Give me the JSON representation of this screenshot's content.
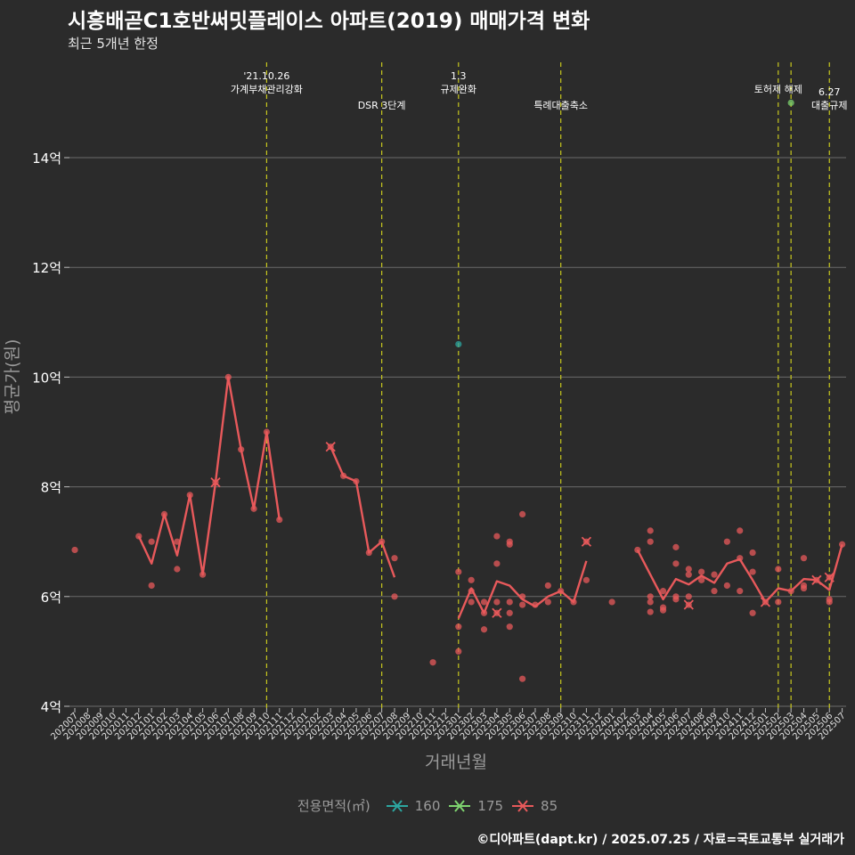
{
  "title": "시흥배곧C1호반써밋플레이스 아파트(2019) 매매가격 변화",
  "subtitle": "최근 5개년 한정",
  "caption": "©디아파트(dapt.kr) / 2025.07.25 / 자료=국토교통부 실거래가",
  "colors": {
    "background": "#2b2b2b",
    "grid": "#6b6b6b",
    "event_line": "#c8c81e",
    "series_160": "#2ca6a0",
    "series_175": "#7ed36f",
    "series_85": "#e8595b"
  },
  "legend": {
    "title": "전용면적(㎡)",
    "items": [
      {
        "label": "160",
        "color": "#2ca6a0"
      },
      {
        "label": "175",
        "color": "#7ed36f"
      },
      {
        "label": "85",
        "color": "#e8595b"
      }
    ]
  },
  "chart_data": {
    "type": "line",
    "xlabel": "거래년월",
    "ylabel": "평균가(원)",
    "ylim": [
      4,
      14
    ],
    "yticks": [
      {
        "value": 4,
        "label": "4억"
      },
      {
        "value": 6,
        "label": "6억"
      },
      {
        "value": 8,
        "label": "8억"
      },
      {
        "value": 10,
        "label": "10억"
      },
      {
        "value": 12,
        "label": "12억"
      },
      {
        "value": 14,
        "label": "14억"
      }
    ],
    "grid": true,
    "legend_position": "bottom",
    "categories": [
      "202007",
      "202008",
      "202009",
      "202010",
      "202011",
      "202012",
      "202101",
      "202102",
      "202103",
      "202104",
      "202105",
      "202106",
      "202107",
      "202108",
      "202109",
      "202110",
      "202111",
      "202112",
      "202201",
      "202202",
      "202203",
      "202204",
      "202205",
      "202206",
      "202207",
      "202208",
      "202209",
      "202210",
      "202211",
      "202212",
      "202301",
      "202302",
      "202303",
      "202304",
      "202305",
      "202306",
      "202307",
      "202308",
      "202309",
      "202310",
      "202311",
      "202312",
      "202401",
      "202402",
      "202403",
      "202404",
      "202405",
      "202406",
      "202407",
      "202408",
      "202409",
      "202410",
      "202411",
      "202412",
      "202501",
      "202502",
      "202503",
      "202504",
      "202505",
      "202506",
      "202507"
    ],
    "events": [
      {
        "x": "202110",
        "label": "'21.10.26\n가계부채관리강화",
        "level": 1
      },
      {
        "x": "202207",
        "label": "DSR 3단계",
        "level": 2
      },
      {
        "x": "202301",
        "label": "1.3\n규제완화",
        "level": 1
      },
      {
        "x": "202309",
        "label": "특례대출축소",
        "level": 2
      },
      {
        "x": "202502",
        "label": "토허제 해제",
        "level": 1
      },
      {
        "x": "202503",
        "label": "",
        "level": 1
      },
      {
        "x": "202506",
        "label": "6.27\n대출규제",
        "level": 2
      }
    ],
    "series": [
      {
        "name": "160",
        "avg": [],
        "points": [
          {
            "x": "202301",
            "y": 10.6
          }
        ],
        "max_markers": []
      },
      {
        "name": "175",
        "avg": [],
        "points": [
          {
            "x": "202503",
            "y": 15.0
          }
        ],
        "max_markers": []
      },
      {
        "name": "85",
        "avg": [
          [
            {
              "x": "202012",
              "y": 7.1
            },
            {
              "x": "202101",
              "y": 6.6
            },
            {
              "x": "202102",
              "y": 7.5
            },
            {
              "x": "202103",
              "y": 6.75
            },
            {
              "x": "202104",
              "y": 7.85
            },
            {
              "x": "202105",
              "y": 6.4
            },
            {
              "x": "202106",
              "y": 8.08
            },
            {
              "x": "202107",
              "y": 10.0
            },
            {
              "x": "202108",
              "y": 8.68
            },
            {
              "x": "202109",
              "y": 7.6
            },
            {
              "x": "202110",
              "y": 9.0
            },
            {
              "x": "202111",
              "y": 7.4
            }
          ],
          [
            {
              "x": "202203",
              "y": 8.73
            },
            {
              "x": "202204",
              "y": 8.2
            },
            {
              "x": "202205",
              "y": 8.1
            },
            {
              "x": "202206",
              "y": 6.8
            },
            {
              "x": "202207",
              "y": 7.0
            },
            {
              "x": "202208",
              "y": 6.35
            }
          ],
          [
            {
              "x": "202301",
              "y": 5.6
            },
            {
              "x": "202302",
              "y": 6.15
            },
            {
              "x": "202303",
              "y": 5.7
            },
            {
              "x": "202304",
              "y": 6.28
            },
            {
              "x": "202305",
              "y": 6.2
            },
            {
              "x": "202306",
              "y": 5.95
            },
            {
              "x": "202307",
              "y": 5.82
            },
            {
              "x": "202308",
              "y": 6.0
            },
            {
              "x": "202309",
              "y": 6.1
            },
            {
              "x": "202310",
              "y": 5.9
            },
            {
              "x": "202311",
              "y": 6.65
            }
          ],
          [
            {
              "x": "202403",
              "y": 6.85
            },
            {
              "x": "202404",
              "y": 6.4
            },
            {
              "x": "202405",
              "y": 5.95
            },
            {
              "x": "202406",
              "y": 6.32
            },
            {
              "x": "202407",
              "y": 6.22
            },
            {
              "x": "202408",
              "y": 6.38
            },
            {
              "x": "202409",
              "y": 6.25
            },
            {
              "x": "202410",
              "y": 6.6
            },
            {
              "x": "202411",
              "y": 6.68
            },
            {
              "x": "202412",
              "y": 6.3
            },
            {
              "x": "202501",
              "y": 5.9
            },
            {
              "x": "202502",
              "y": 6.15
            },
            {
              "x": "202503",
              "y": 6.1
            },
            {
              "x": "202504",
              "y": 6.32
            },
            {
              "x": "202505",
              "y": 6.3
            },
            {
              "x": "202506",
              "y": 6.12
            },
            {
              "x": "202507",
              "y": 6.95
            }
          ]
        ],
        "points": [
          {
            "x": "202007",
            "y": 6.85
          },
          {
            "x": "202012",
            "y": 7.1
          },
          {
            "x": "202101",
            "y": 7.0
          },
          {
            "x": "202101",
            "y": 6.2
          },
          {
            "x": "202102",
            "y": 7.5
          },
          {
            "x": "202103",
            "y": 7.0
          },
          {
            "x": "202103",
            "y": 6.5
          },
          {
            "x": "202104",
            "y": 7.85
          },
          {
            "x": "202105",
            "y": 6.4
          },
          {
            "x": "202106",
            "y": 8.08
          },
          {
            "x": "202107",
            "y": 10.0
          },
          {
            "x": "202108",
            "y": 8.68
          },
          {
            "x": "202109",
            "y": 7.6
          },
          {
            "x": "202110",
            "y": 9.0
          },
          {
            "x": "202111",
            "y": 7.4
          },
          {
            "x": "202203",
            "y": 8.73
          },
          {
            "x": "202204",
            "y": 8.2
          },
          {
            "x": "202205",
            "y": 8.1
          },
          {
            "x": "202206",
            "y": 6.8
          },
          {
            "x": "202207",
            "y": 7.0
          },
          {
            "x": "202208",
            "y": 6.7
          },
          {
            "x": "202208",
            "y": 6.0
          },
          {
            "x": "202211",
            "y": 4.8
          },
          {
            "x": "202301",
            "y": 6.45
          },
          {
            "x": "202301",
            "y": 5.45
          },
          {
            "x": "202301",
            "y": 5.0
          },
          {
            "x": "202302",
            "y": 6.3
          },
          {
            "x": "202302",
            "y": 6.1
          },
          {
            "x": "202302",
            "y": 5.9
          },
          {
            "x": "202303",
            "y": 5.9
          },
          {
            "x": "202303",
            "y": 5.7
          },
          {
            "x": "202303",
            "y": 5.4
          },
          {
            "x": "202304",
            "y": 7.1
          },
          {
            "x": "202304",
            "y": 6.6
          },
          {
            "x": "202304",
            "y": 5.9
          },
          {
            "x": "202304",
            "y": 5.7
          },
          {
            "x": "202305",
            "y": 7.0
          },
          {
            "x": "202305",
            "y": 6.95
          },
          {
            "x": "202305",
            "y": 5.9
          },
          {
            "x": "202305",
            "y": 5.7
          },
          {
            "x": "202305",
            "y": 5.45
          },
          {
            "x": "202306",
            "y": 7.5
          },
          {
            "x": "202306",
            "y": 6.0
          },
          {
            "x": "202306",
            "y": 5.85
          },
          {
            "x": "202306",
            "y": 4.5
          },
          {
            "x": "202307",
            "y": 5.85
          },
          {
            "x": "202308",
            "y": 6.2
          },
          {
            "x": "202308",
            "y": 5.9
          },
          {
            "x": "202309",
            "y": 6.1
          },
          {
            "x": "202310",
            "y": 5.9
          },
          {
            "x": "202311",
            "y": 7.0
          },
          {
            "x": "202311",
            "y": 6.3
          },
          {
            "x": "202401",
            "y": 5.9
          },
          {
            "x": "202403",
            "y": 6.85
          },
          {
            "x": "202404",
            "y": 7.2
          },
          {
            "x": "202404",
            "y": 7.0
          },
          {
            "x": "202404",
            "y": 6.0
          },
          {
            "x": "202404",
            "y": 5.9
          },
          {
            "x": "202404",
            "y": 5.72
          },
          {
            "x": "202405",
            "y": 6.1
          },
          {
            "x": "202405",
            "y": 5.8
          },
          {
            "x": "202405",
            "y": 5.75
          },
          {
            "x": "202406",
            "y": 6.9
          },
          {
            "x": "202406",
            "y": 6.6
          },
          {
            "x": "202406",
            "y": 6.0
          },
          {
            "x": "202406",
            "y": 5.95
          },
          {
            "x": "202407",
            "y": 6.5
          },
          {
            "x": "202407",
            "y": 6.4
          },
          {
            "x": "202407",
            "y": 6.0
          },
          {
            "x": "202407",
            "y": 5.85
          },
          {
            "x": "202408",
            "y": 6.45
          },
          {
            "x": "202408",
            "y": 6.3
          },
          {
            "x": "202409",
            "y": 6.4
          },
          {
            "x": "202409",
            "y": 6.1
          },
          {
            "x": "202410",
            "y": 7.0
          },
          {
            "x": "202410",
            "y": 6.2
          },
          {
            "x": "202411",
            "y": 7.2
          },
          {
            "x": "202411",
            "y": 6.7
          },
          {
            "x": "202411",
            "y": 6.1
          },
          {
            "x": "202412",
            "y": 6.8
          },
          {
            "x": "202412",
            "y": 6.45
          },
          {
            "x": "202412",
            "y": 5.7
          },
          {
            "x": "202501",
            "y": 5.9
          },
          {
            "x": "202502",
            "y": 6.5
          },
          {
            "x": "202502",
            "y": 5.9
          },
          {
            "x": "202503",
            "y": 6.1
          },
          {
            "x": "202504",
            "y": 6.7
          },
          {
            "x": "202504",
            "y": 6.2
          },
          {
            "x": "202504",
            "y": 6.15
          },
          {
            "x": "202505",
            "y": 6.3
          },
          {
            "x": "202506",
            "y": 6.35
          },
          {
            "x": "202506",
            "y": 5.95
          },
          {
            "x": "202506",
            "y": 5.9
          },
          {
            "x": "202507",
            "y": 6.95
          }
        ],
        "max_markers": [
          {
            "x": "202106",
            "y": 8.08
          },
          {
            "x": "202203",
            "y": 8.73
          },
          {
            "x": "202304",
            "y": 5.7
          },
          {
            "x": "202311",
            "y": 7.0
          },
          {
            "x": "202407",
            "y": 5.85
          },
          {
            "x": "202501",
            "y": 5.9
          },
          {
            "x": "202505",
            "y": 6.3
          },
          {
            "x": "202506",
            "y": 6.35
          }
        ]
      }
    ]
  }
}
